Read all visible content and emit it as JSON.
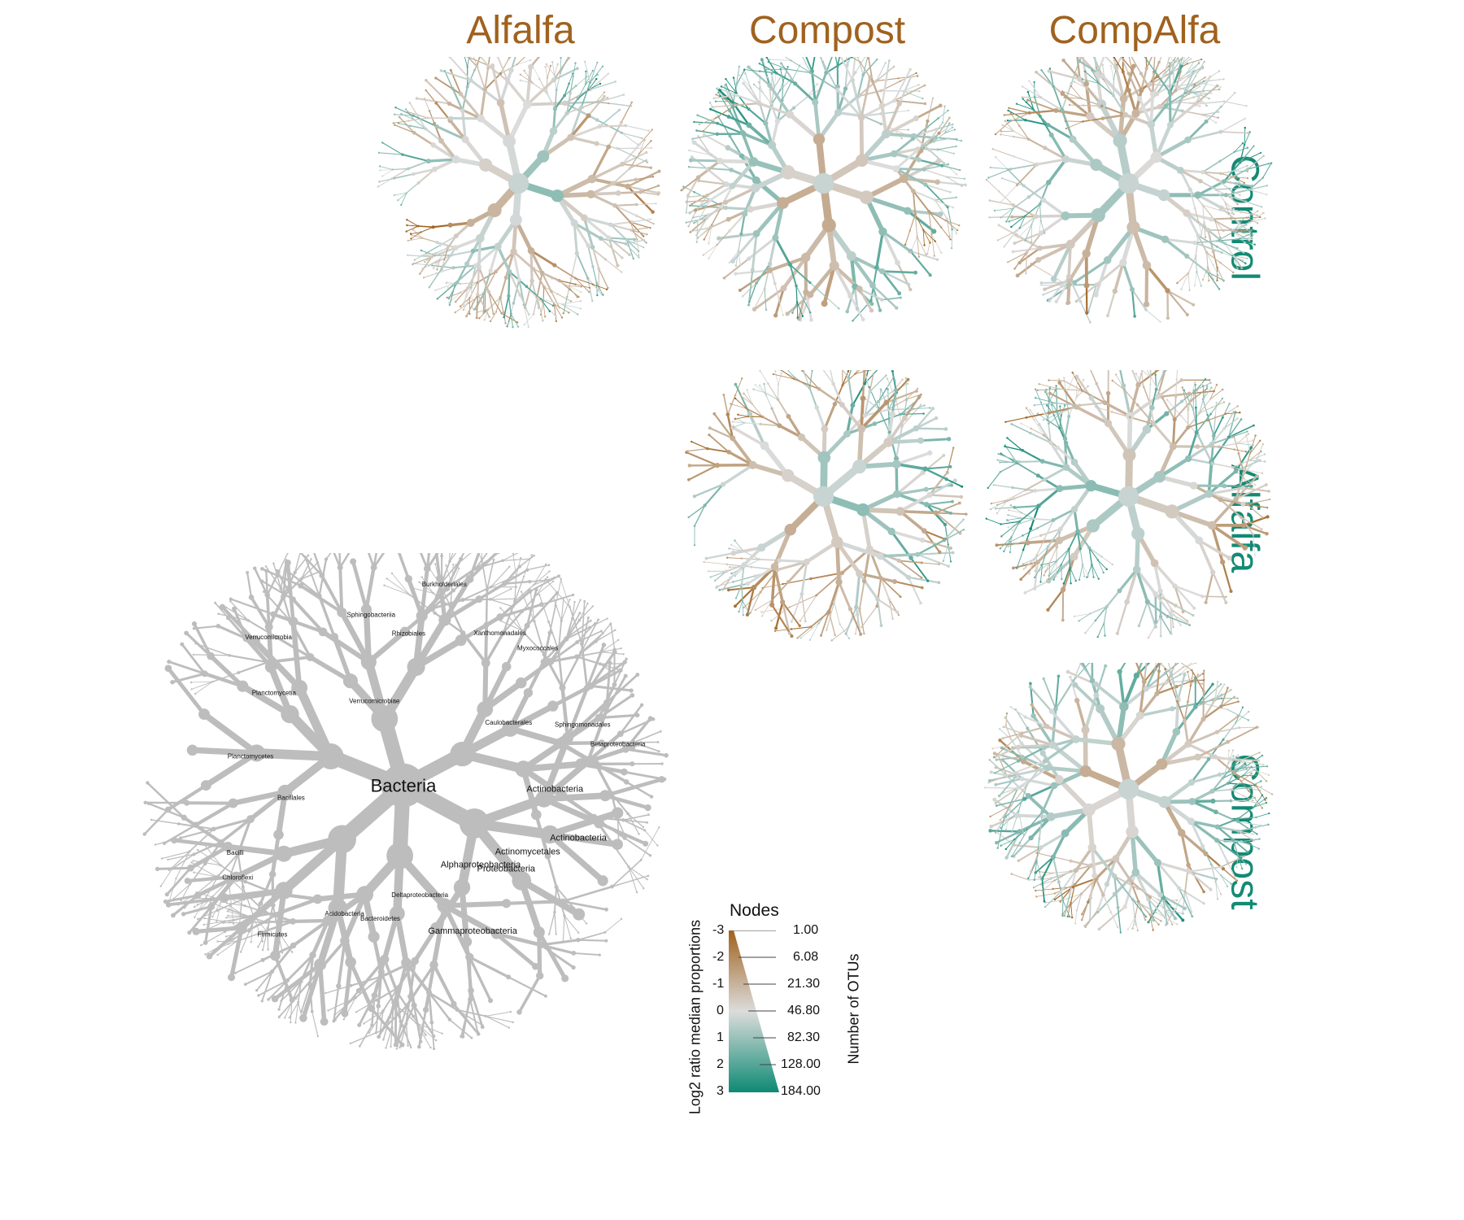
{
  "columns": [
    "Alfalfa",
    "Compost",
    "CompAlfa"
  ],
  "rows": [
    "Control",
    "Alfalfa",
    "Compost"
  ],
  "key_tree": {
    "root_label": "Bacteria",
    "major_labels": [
      "Actinobacteria",
      "Actinobacteria",
      "Actinomycetales",
      "Proteobacteria",
      "Alphaproteobacteria",
      "Gammaproteobacteria",
      "Deltaproteobacteria",
      "Bacteroidetes",
      "Acidobacteria",
      "Firmicutes",
      "Chloroflexi",
      "Bacilli",
      "Bacillales",
      "Planctomycetes",
      "Planctomycetia",
      "Verrucomicrobia",
      "Verrucomicrobiae",
      "Sphingobacteriia",
      "Rhizobiales",
      "Burkholderiales",
      "Xanthomonadales",
      "Myxococcales",
      "Caulobacterales",
      "Sphingomonadales",
      "Betaproteobacteria"
    ]
  },
  "legend": {
    "title": "Nodes",
    "color_axis_label": "Log2 ratio median proportions",
    "color_ticks": [
      "-3",
      "-2",
      "-1",
      "0",
      "1",
      "2",
      "3"
    ],
    "size_axis_label": "Number of OTUs",
    "size_ticks": [
      "1.00",
      "6.08",
      "21.30",
      "46.80",
      "82.30",
      "128.00",
      "184.00"
    ],
    "colors": {
      "negative": "#A0621E",
      "neutral": "#DCDCDC",
      "positive": "#0E8A74"
    }
  }
}
